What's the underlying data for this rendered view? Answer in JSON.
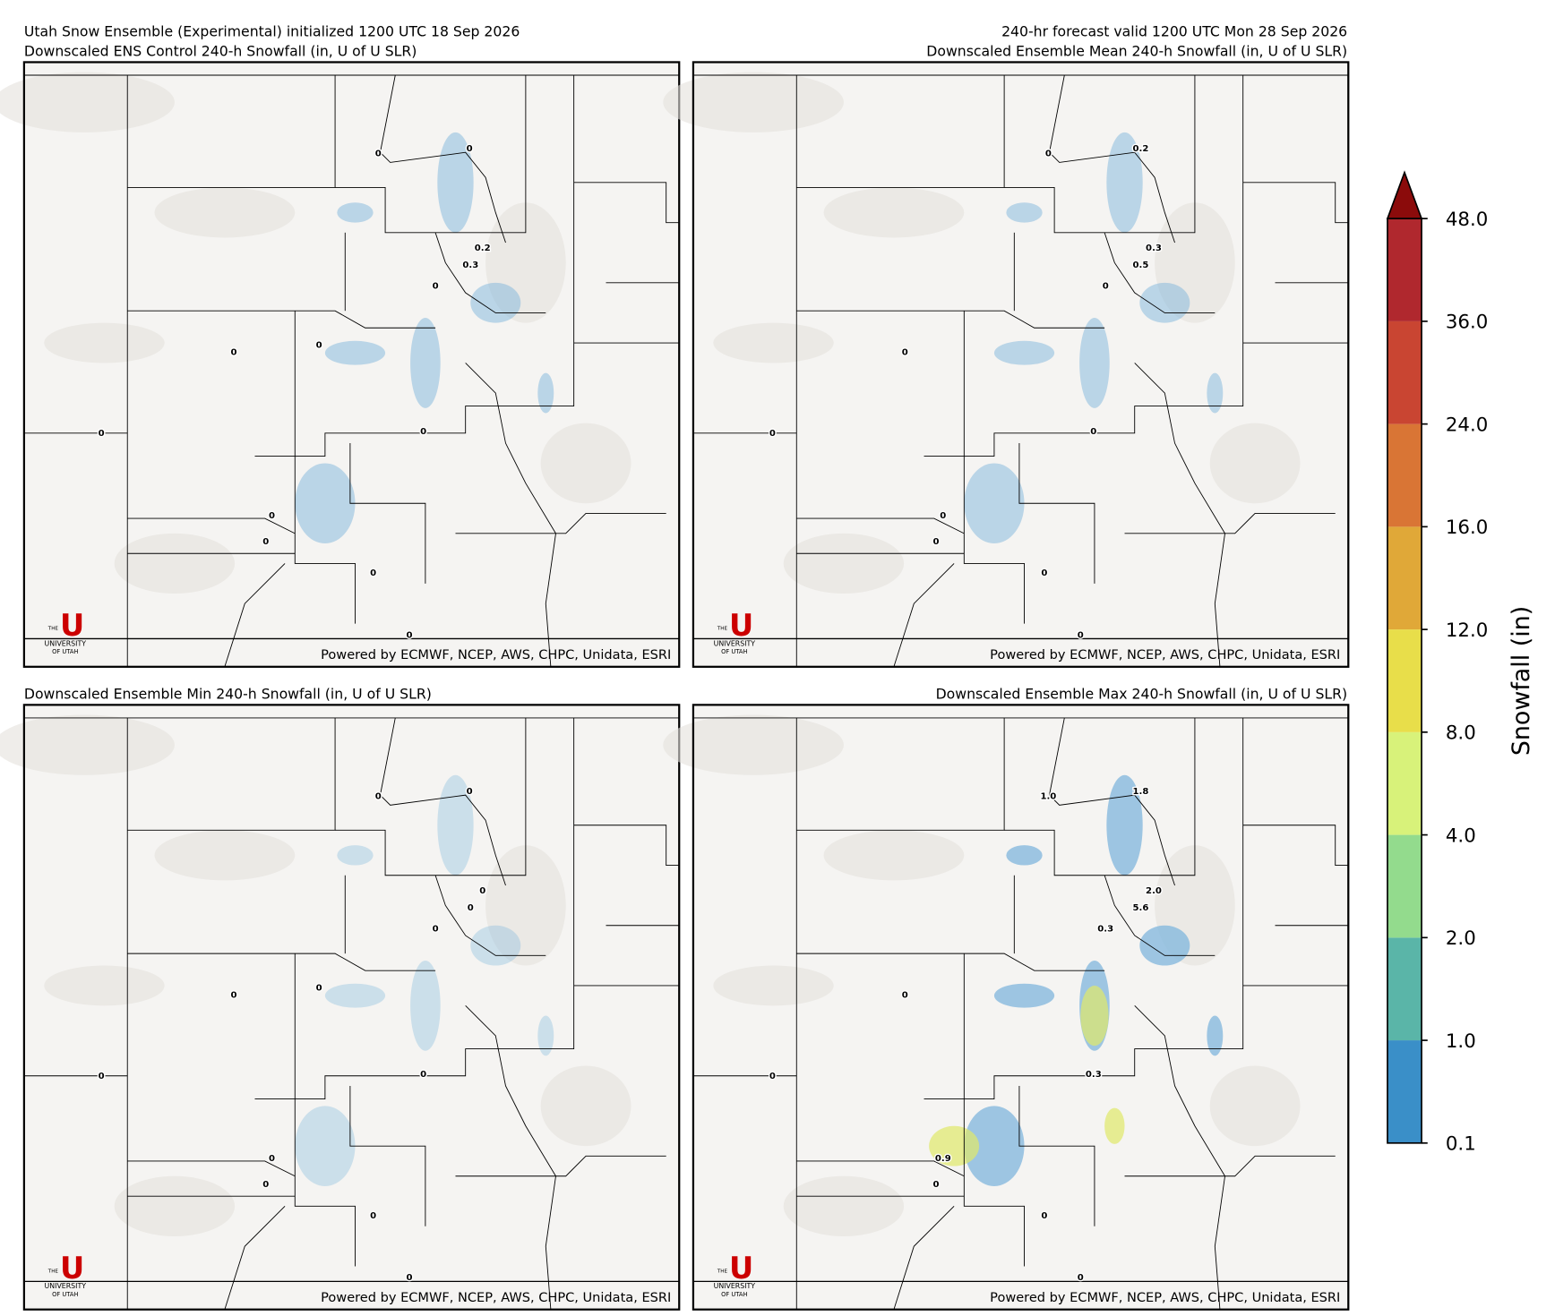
{
  "header": {
    "left": "Utah Snow Ensemble (Experimental) initialized 1200 UTC 18 Sep 2026",
    "right": "240-hr forecast valid 1200 UTC Mon 28 Sep 2026"
  },
  "footer": "Powered by ECMWF, NCEP, AWS, CHPC, Unidata, ESRI",
  "logo": {
    "letter": "U",
    "the": "THE",
    "name": "UNIVERSITY",
    "place": "OF UTAH"
  },
  "panels": [
    {
      "title": "Downscaled ENS Control 240-h Snowfall (in, U of U SLR)",
      "points": [
        "0",
        "0",
        "0.2",
        "0.3",
        "0",
        "0",
        "0",
        "0",
        "0",
        "0",
        "0",
        "0",
        "0"
      ]
    },
    {
      "title": "Downscaled Ensemble Mean 240-h Snowfall (in, U of U SLR)",
      "points": [
        "0",
        "0.2",
        "0.3",
        "0.5",
        "0",
        "0",
        "0",
        "0",
        "0",
        "0",
        "0",
        "0"
      ]
    },
    {
      "title": "Downscaled Ensemble Min 240-h Snowfall (in, U of U SLR)",
      "points": [
        "0",
        "0",
        "0",
        "0",
        "0",
        "0",
        "0",
        "0",
        "0",
        "0",
        "0",
        "0",
        "0"
      ]
    },
    {
      "title": "Downscaled Ensemble Max 240-h Snowfall (in, U of U SLR)",
      "points": [
        "1.0",
        "1.8",
        "2.0",
        "5.6",
        "0.3",
        "0",
        "0",
        "0.3",
        "0.9",
        "0",
        "0",
        "0"
      ]
    }
  ],
  "colorbar": {
    "label": "Snowfall (in)",
    "levels": [
      {
        "value": 0.1,
        "label": "0.1"
      },
      {
        "value": 1,
        "label": "1.0"
      },
      {
        "value": 2,
        "label": "2.0"
      },
      {
        "value": 4,
        "label": "4.0"
      },
      {
        "value": 8,
        "label": "8.0"
      },
      {
        "value": 12,
        "label": "12.0"
      },
      {
        "value": 16,
        "label": "16.0"
      },
      {
        "value": 24,
        "label": "24.0"
      },
      {
        "value": 36,
        "label": "36.0"
      },
      {
        "value": 48,
        "label": "48.0"
      }
    ],
    "colors": [
      "#3a8fc8",
      "#5ab5a8",
      "#93db8d",
      "#d8f27a",
      "#e8de4a",
      "#e0a838",
      "#d97535",
      "#c94532",
      "#b0282e"
    ],
    "extend_color": "#8b0b0b"
  }
}
